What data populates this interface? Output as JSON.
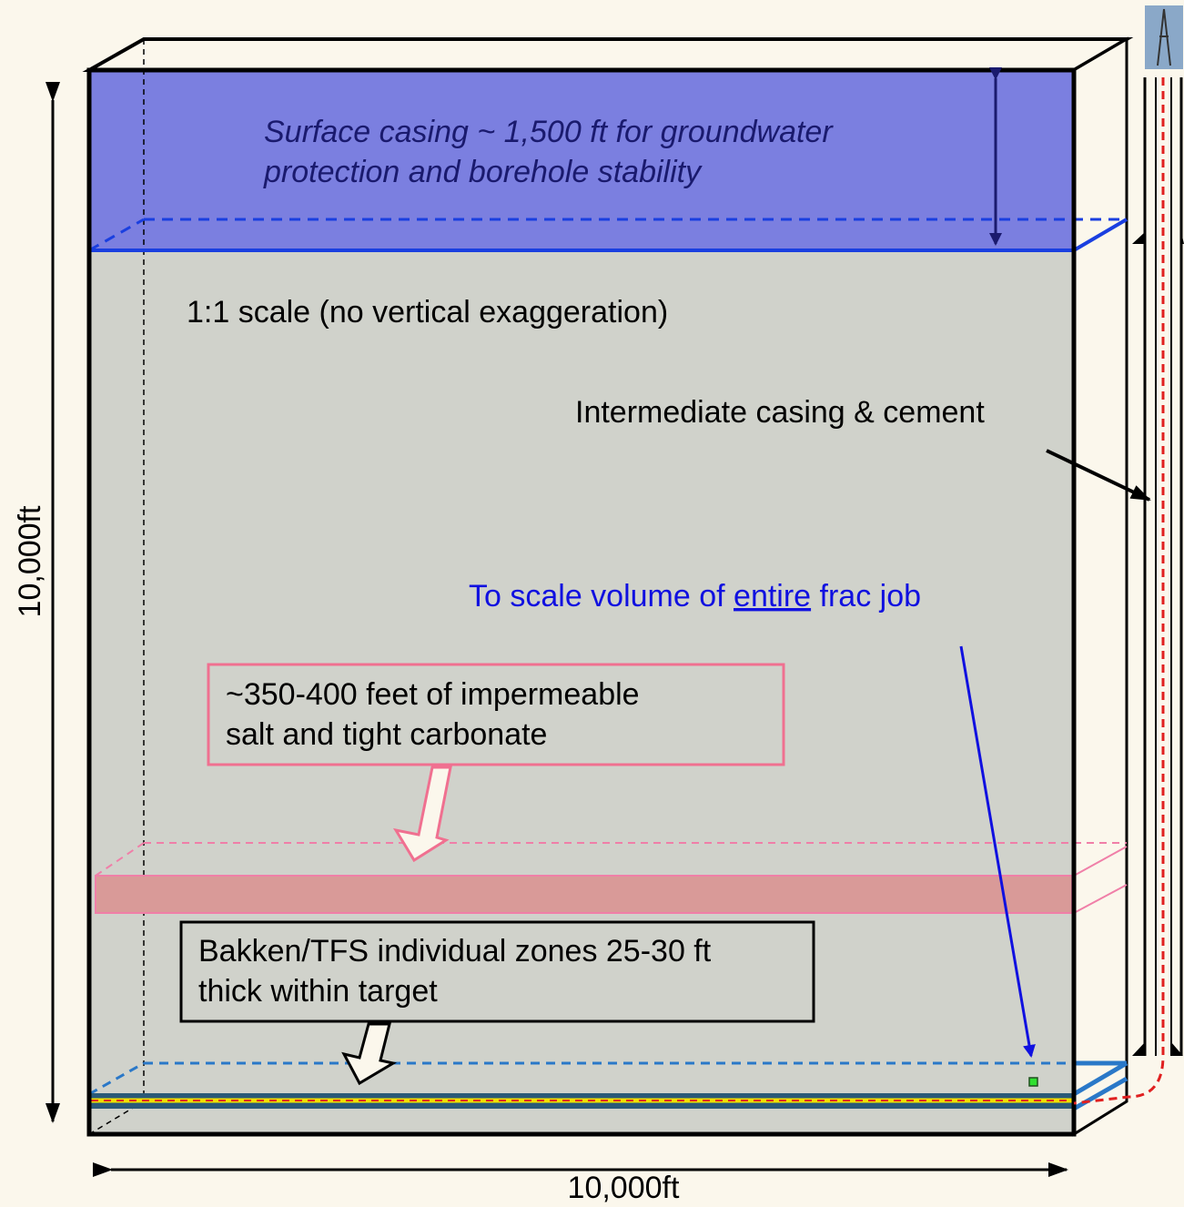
{
  "diagram": {
    "surface_casing": {
      "lines": [
        "Surface casing ~ 1,500 ft for groundwater",
        "protection and borehole stability"
      ]
    },
    "scale_note": "1:1 scale (no vertical exaggeration)",
    "intermediate_casing": "Intermediate casing & cement",
    "frac_volume": {
      "before": "To scale volume of ",
      "emphasis": "entire",
      "after": " frac job"
    },
    "barrier_box": {
      "lines": [
        "~350-400 feet of impermeable",
        "salt and tight carbonate"
      ]
    },
    "target_box": {
      "lines": [
        "Bakken/TFS individual zones 25-30 ft",
        "thick within target"
      ]
    },
    "height_label": "10,000ft",
    "width_label": "10,000ft"
  }
}
